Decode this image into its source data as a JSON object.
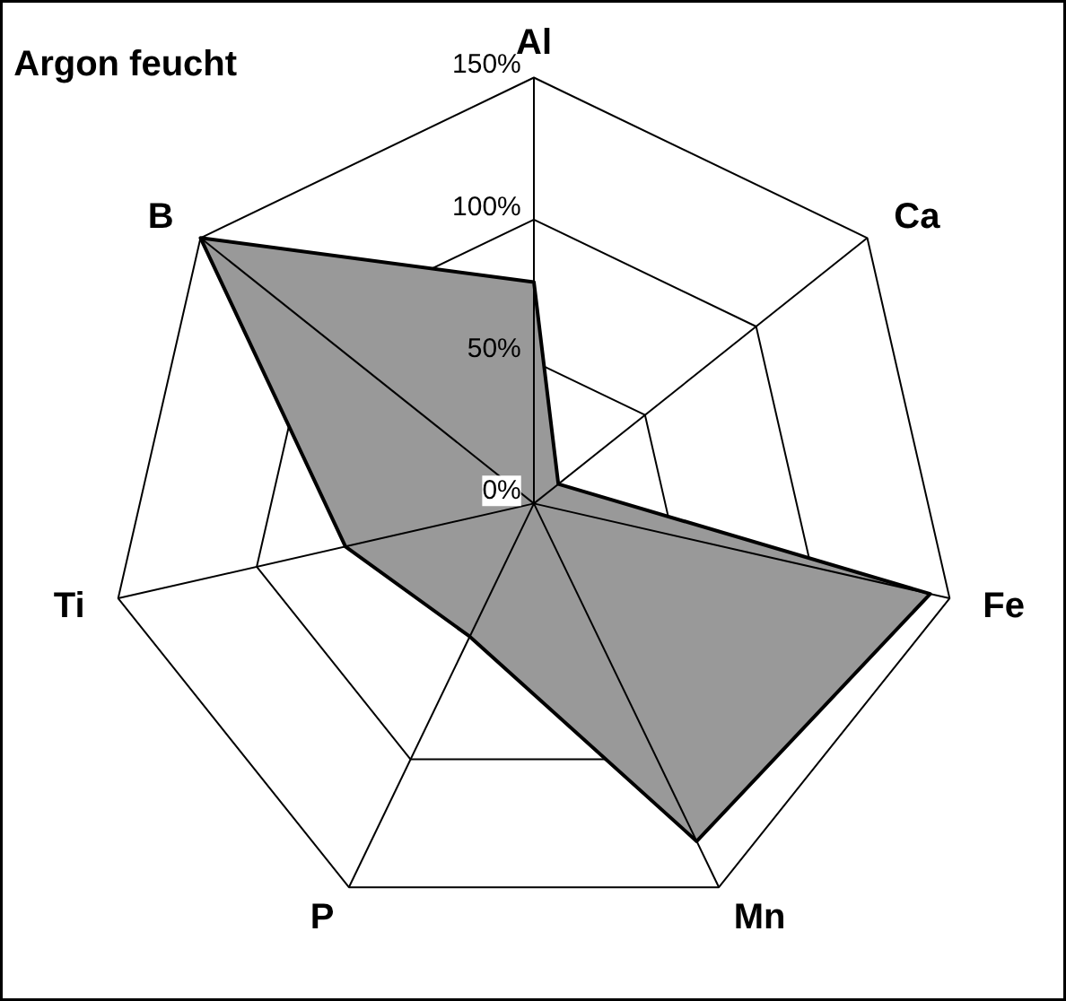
{
  "chart_data": {
    "type": "radar",
    "title": "Argon feucht",
    "categories": [
      "Al",
      "Ca",
      "Fe",
      "Mn",
      "P",
      "Ti",
      "B"
    ],
    "series": [
      {
        "color": "#999999",
        "values": [
          78,
          11,
          143,
          132,
          52,
          68,
          150
        ]
      }
    ],
    "ylim": [
      0,
      150
    ],
    "yticks": [
      {
        "value": 0,
        "label": "0%"
      },
      {
        "value": 50,
        "label": "50%"
      },
      {
        "value": 100,
        "label": "100%"
      },
      {
        "value": 150,
        "label": "150%"
      }
    ],
    "grid": true
  }
}
